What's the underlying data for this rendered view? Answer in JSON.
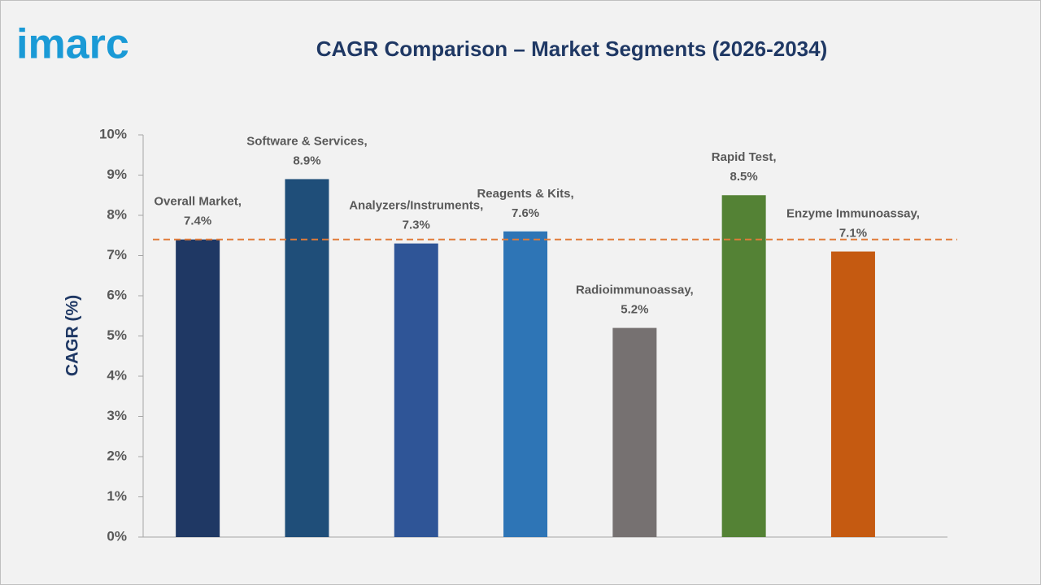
{
  "logo": "imarc",
  "chart_data": {
    "type": "bar",
    "title": "CAGR Comparison – Market Segments (2026-2034)",
    "ylabel": "CAGR (%)",
    "categories": [
      "Overall Market,",
      "Software & Services,",
      "Analyzers/Instruments,",
      "Reagents & Kits,",
      "Radioimmunoassay,",
      "Rapid Test,",
      "Enzyme Immunoassay,"
    ],
    "values": [
      7.4,
      8.9,
      7.3,
      7.6,
      5.2,
      8.5,
      7.1
    ],
    "value_labels": [
      "7.4%",
      "8.9%",
      "7.3%",
      "7.6%",
      "5.2%",
      "8.5%",
      "7.1%"
    ],
    "colors": [
      "#1f3864",
      "#1f4e79",
      "#2f5597",
      "#2e75b6",
      "#767171",
      "#548235",
      "#c55a11"
    ],
    "reference_line": {
      "value": 7.4,
      "color": "#e07b39"
    },
    "ylim": [
      0,
      10
    ],
    "yticks": [
      {
        "value": 0,
        "label": "0%"
      },
      {
        "value": 1,
        "label": "1%"
      },
      {
        "value": 2,
        "label": "2%"
      },
      {
        "value": 3,
        "label": "3%"
      },
      {
        "value": 4,
        "label": "4%"
      },
      {
        "value": 5,
        "label": "5%"
      },
      {
        "value": 6,
        "label": "6%"
      },
      {
        "value": 7,
        "label": "7%"
      },
      {
        "value": 8,
        "label": "8%"
      },
      {
        "value": 9,
        "label": "9%"
      },
      {
        "value": 10,
        "label": "10%"
      }
    ],
    "grid": false
  }
}
